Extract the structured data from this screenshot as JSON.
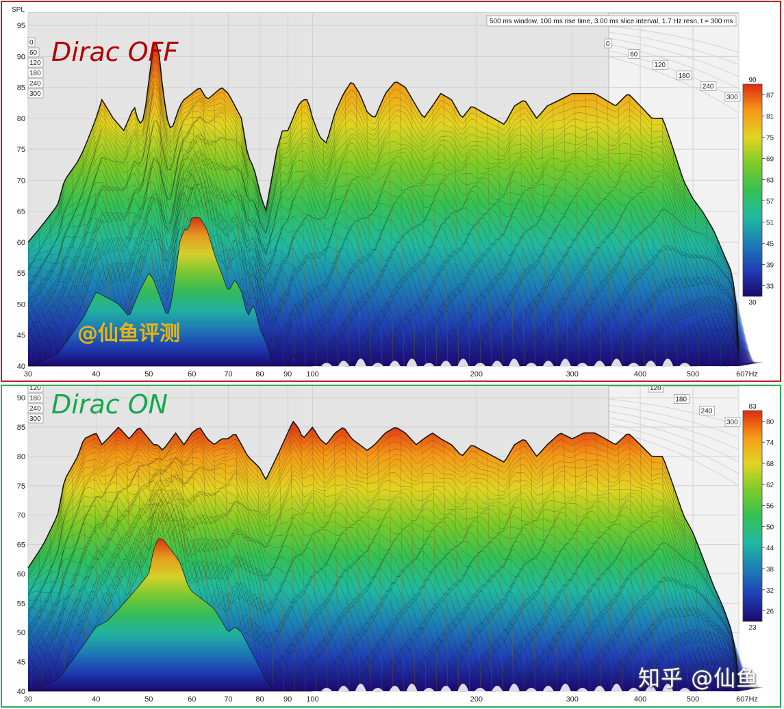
{
  "watermark": "知乎 @仙鱼",
  "colors": {
    "ramp": [
      "#1b0870",
      "#1f3fb4",
      "#1d7fb6",
      "#22b8a0",
      "#35c154",
      "#7ecb28",
      "#e2d423",
      "#f59a18",
      "#e02a10"
    ],
    "edge": "#141414",
    "plot_bg": "#f2f2f2",
    "wall_bg": "#e4e4e4",
    "grid": "#d0d0d0"
  },
  "chart_data": [
    {
      "type": "area",
      "panel_title": "Dirac OFF",
      "title_color": "#b20000",
      "watermark": "@仙鱼评测",
      "watermark_color": "#e8b514",
      "annotation": "500 ms window, 100 ms rise time, 3.00 ms slice interval, 1.7 Hz resn, t = 300 ms",
      "ylabel": "SPL",
      "y_ticks": [
        95,
        90,
        85,
        80,
        75,
        70,
        65,
        60,
        55,
        50,
        45,
        40
      ],
      "ylim": [
        40,
        97
      ],
      "x_scale": "log",
      "xlim": [
        30,
        607
      ],
      "x_ticks": [
        "30",
        "40",
        "50",
        "60",
        "70",
        "80",
        "90",
        "100",
        "200",
        "300",
        "400",
        "500",
        "607Hz"
      ],
      "x_tick_values": [
        30,
        40,
        50,
        60,
        70,
        80,
        90,
        100,
        200,
        300,
        400,
        500,
        607
      ],
      "time_ticks_left": [
        "0",
        "60",
        "120",
        "180",
        "240",
        "300"
      ],
      "time_ticks_right": [
        "0",
        "60",
        "120",
        "180",
        "240",
        "300"
      ],
      "colorbar": {
        "max": "90",
        "min": "30",
        "ticks": [
          "87",
          "81",
          "75",
          "69",
          "63",
          "57",
          "51",
          "45",
          "39",
          "33"
        ]
      },
      "front_curve": {
        "freq": [
          30,
          32,
          34,
          35,
          37,
          38,
          40,
          41,
          43,
          44,
          45,
          46,
          47,
          48,
          49,
          50,
          51,
          52,
          53,
          54,
          55,
          56,
          57,
          58,
          60,
          62,
          64,
          66,
          68,
          70,
          72,
          74,
          76,
          78,
          80,
          82,
          84,
          86,
          88,
          90,
          92,
          94,
          96,
          98,
          100,
          103,
          106,
          110,
          114,
          118,
          122,
          126,
          130,
          136,
          142,
          148,
          155,
          160,
          166,
          172,
          180,
          188,
          196,
          205,
          215,
          225,
          235,
          245,
          258,
          270,
          285,
          300,
          315,
          330,
          345,
          360,
          380,
          400,
          420,
          440,
          460,
          480,
          500,
          520,
          545,
          570,
          590,
          600,
          607
        ],
        "spl": [
          60,
          63,
          66,
          70,
          73,
          75,
          80,
          83,
          80,
          79,
          78,
          80,
          82,
          79,
          80,
          86,
          92,
          92,
          85,
          80,
          78,
          80,
          82,
          83,
          84,
          85,
          83,
          84,
          85,
          84,
          82,
          80,
          74,
          72,
          68,
          65,
          70,
          75,
          78,
          78,
          80,
          82,
          83,
          83,
          80,
          77,
          76,
          81,
          84,
          86,
          84,
          81,
          80,
          84,
          86,
          85,
          82,
          80,
          82,
          84,
          83,
          80,
          82,
          81,
          80,
          79,
          82,
          83,
          80,
          82,
          83,
          84,
          84,
          84,
          83,
          82,
          84,
          82,
          80,
          80,
          75,
          70,
          67,
          65,
          62,
          58,
          55,
          50,
          43
        ]
      },
      "back_curve": {
        "freq": [
          30,
          34,
          36,
          38,
          40,
          42,
          44,
          46,
          48,
          50,
          51,
          52,
          53,
          54,
          55,
          56,
          57,
          58,
          59,
          60,
          62,
          64,
          66,
          68,
          70,
          72,
          74,
          76,
          78,
          80,
          82,
          85,
          88,
          90,
          92,
          95,
          98,
          100
        ],
        "spl": [
          40,
          42,
          45,
          48,
          52,
          51,
          50,
          48,
          52,
          55,
          54,
          52,
          50,
          48,
          50,
          55,
          60,
          62,
          62,
          64,
          64,
          62,
          58,
          55,
          52,
          54,
          52,
          48,
          50,
          46,
          44,
          40,
          40,
          40,
          42,
          40,
          40,
          40
        ]
      }
    },
    {
      "type": "area",
      "panel_title": "Dirac ON",
      "title_color": "#12a84c",
      "annotation": "",
      "ylabel": "",
      "y_ticks": [
        90,
        85,
        80,
        75,
        70,
        65,
        60,
        55,
        50,
        45,
        40
      ],
      "ylim": [
        40,
        92
      ],
      "x_scale": "log",
      "xlim": [
        30,
        607
      ],
      "x_ticks": [
        "30",
        "40",
        "50",
        "60",
        "70",
        "80",
        "90",
        "100",
        "200",
        "300",
        "400",
        "500",
        "607Hz"
      ],
      "x_tick_values": [
        30,
        40,
        50,
        60,
        70,
        80,
        90,
        100,
        200,
        300,
        400,
        500,
        607
      ],
      "time_ticks_left": [
        "120",
        "180",
        "240",
        "300"
      ],
      "time_ticks_right": [
        "120",
        "180",
        "240",
        "300"
      ],
      "colorbar": {
        "max": "83",
        "min": "23",
        "ticks": [
          "80",
          "74",
          "68",
          "62",
          "56",
          "50",
          "44",
          "38",
          "32",
          "26"
        ]
      },
      "front_curve": {
        "freq": [
          30,
          32,
          34,
          35,
          37,
          38,
          40,
          41,
          43,
          44,
          45,
          46,
          47,
          48,
          49,
          50,
          51,
          52,
          53,
          54,
          55,
          56,
          57,
          58,
          60,
          62,
          64,
          66,
          68,
          70,
          72,
          74,
          76,
          78,
          80,
          82,
          84,
          86,
          88,
          90,
          92,
          94,
          96,
          98,
          100,
          103,
          106,
          110,
          114,
          118,
          122,
          126,
          130,
          136,
          142,
          148,
          155,
          160,
          166,
          172,
          180,
          188,
          196,
          205,
          215,
          225,
          235,
          245,
          258,
          270,
          285,
          300,
          315,
          330,
          345,
          360,
          380,
          400,
          420,
          440,
          460,
          480,
          500,
          520,
          545,
          570,
          590,
          600,
          607
        ],
        "spl": [
          61,
          65,
          70,
          76,
          80,
          83,
          84,
          82,
          84,
          85,
          84,
          83,
          84,
          85,
          84,
          83,
          82,
          82,
          81,
          82,
          83,
          84,
          83,
          82,
          84,
          85,
          83,
          82,
          83,
          83,
          84,
          82,
          80,
          79,
          78,
          76,
          78,
          80,
          82,
          84,
          86,
          85,
          83,
          84,
          85,
          83,
          82,
          84,
          85,
          83,
          82,
          81,
          82,
          84,
          85,
          84,
          82,
          83,
          84,
          83,
          82,
          80,
          82,
          81,
          80,
          79,
          82,
          83,
          80,
          82,
          84,
          83,
          84,
          84,
          83,
          82,
          84,
          82,
          80,
          80,
          75,
          70,
          67,
          63,
          58,
          54,
          50,
          46,
          41
        ]
      },
      "back_curve": {
        "freq": [
          30,
          34,
          36,
          38,
          40,
          42,
          44,
          46,
          48,
          50,
          51,
          52,
          53,
          54,
          55,
          56,
          57,
          58,
          59,
          60,
          62,
          64,
          66,
          68,
          70,
          72,
          74,
          76,
          78,
          80,
          82,
          85,
          88,
          90,
          92,
          95,
          98,
          100
        ],
        "spl": [
          40,
          42,
          45,
          48,
          51,
          52,
          54,
          56,
          58,
          60,
          64,
          66,
          66,
          65,
          64,
          63,
          62,
          60,
          58,
          57,
          56,
          55,
          54,
          52,
          50,
          51,
          50,
          48,
          46,
          44,
          42,
          40,
          40,
          40,
          40,
          40,
          40,
          40
        ]
      }
    }
  ]
}
